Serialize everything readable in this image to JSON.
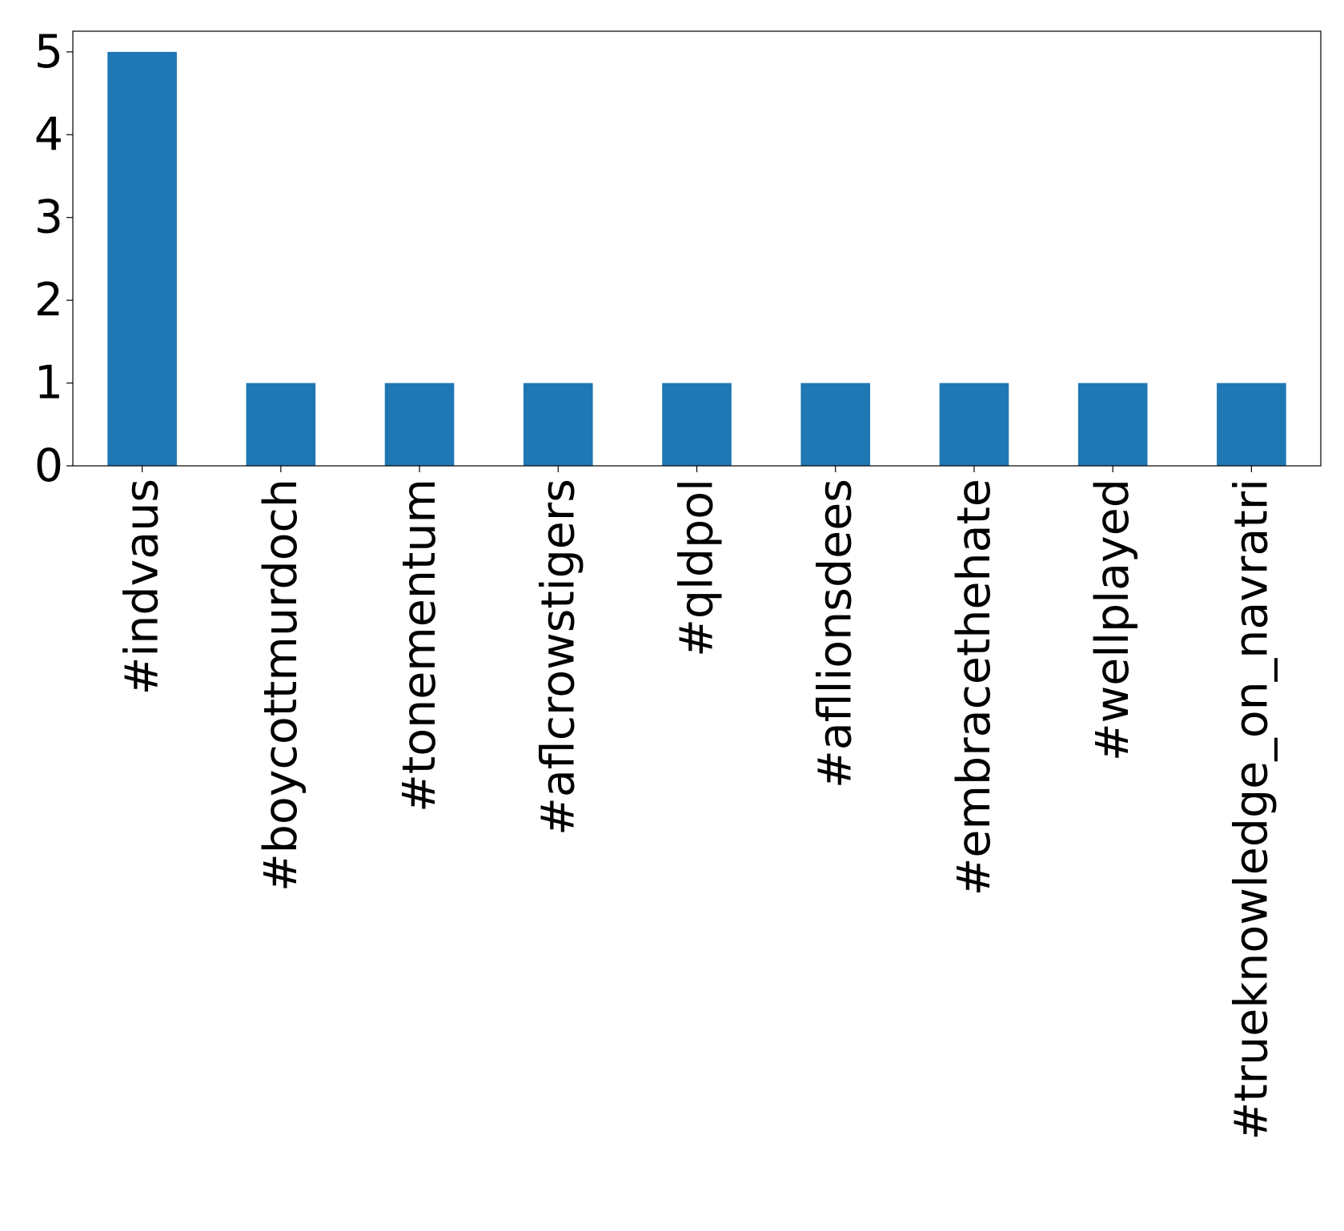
{
  "chart_data": {
    "type": "bar",
    "title": "",
    "xlabel": "",
    "ylabel": "",
    "categories": [
      "#indvaus",
      "#boycottmurdoch",
      "#tonementum",
      "#aflcrowstigers",
      "#qldpol",
      "#afllionsdees",
      "#embracethehate",
      "#wellplayed",
      "#trueknowledge_on_navratri"
    ],
    "series": [
      {
        "values": [
          5,
          1,
          1,
          1,
          1,
          1,
          1,
          1,
          1
        ],
        "color": "#1f77b4"
      }
    ],
    "ylim": [
      0,
      5.25
    ],
    "yticks": [
      0,
      1,
      2,
      3,
      4,
      5
    ],
    "grid": false,
    "legend": "none"
  }
}
